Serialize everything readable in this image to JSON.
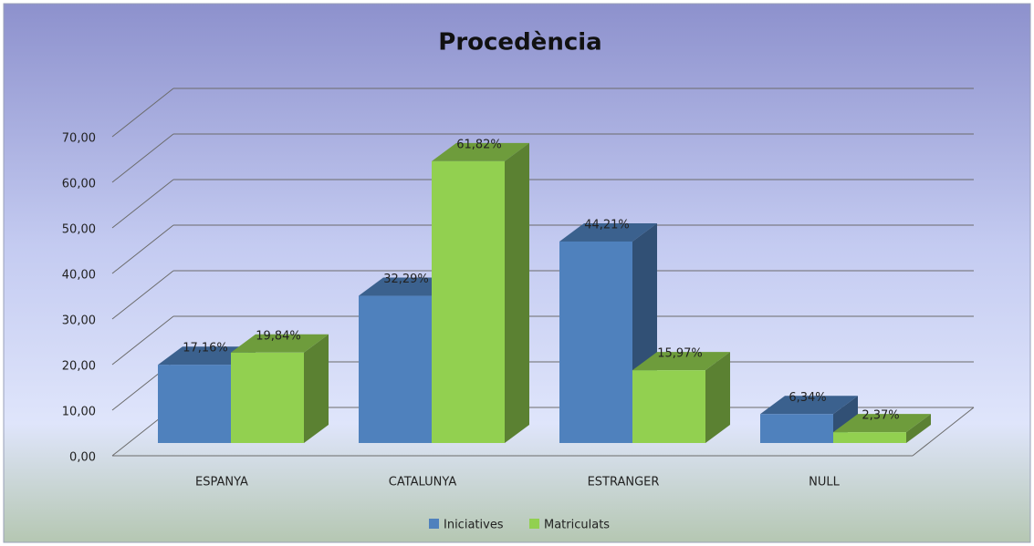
{
  "chart_data": {
    "type": "bar3d",
    "title": "Procedència",
    "categories": [
      "ESPANYA",
      "CATALUNYA",
      "ESTRANGER",
      "NULL"
    ],
    "series": [
      {
        "name": "Iniciatives",
        "color": "#4f81bd",
        "values": [
          17.16,
          32.29,
          44.21,
          6.34
        ],
        "value_labels": [
          "17,16%",
          "32,29%",
          "44,21%",
          "6,34%"
        ]
      },
      {
        "name": "Matriculats",
        "color": "#92d050",
        "values": [
          19.84,
          61.82,
          15.97,
          2.37
        ],
        "value_labels": [
          "19,84%",
          "61,82%",
          "15,97%",
          "2,37%"
        ]
      }
    ],
    "ylim": [
      0,
      70
    ],
    "yticks": [
      {
        "value": 0,
        "label": "0,00"
      },
      {
        "value": 10,
        "label": "10,00"
      },
      {
        "value": 20,
        "label": "20,00"
      },
      {
        "value": 30,
        "label": "30,00"
      },
      {
        "value": 40,
        "label": "40,00"
      },
      {
        "value": 50,
        "label": "50,00"
      },
      {
        "value": 60,
        "label": "60,00"
      },
      {
        "value": 70,
        "label": "70,00"
      }
    ],
    "grid": true,
    "legend": "bottom"
  }
}
